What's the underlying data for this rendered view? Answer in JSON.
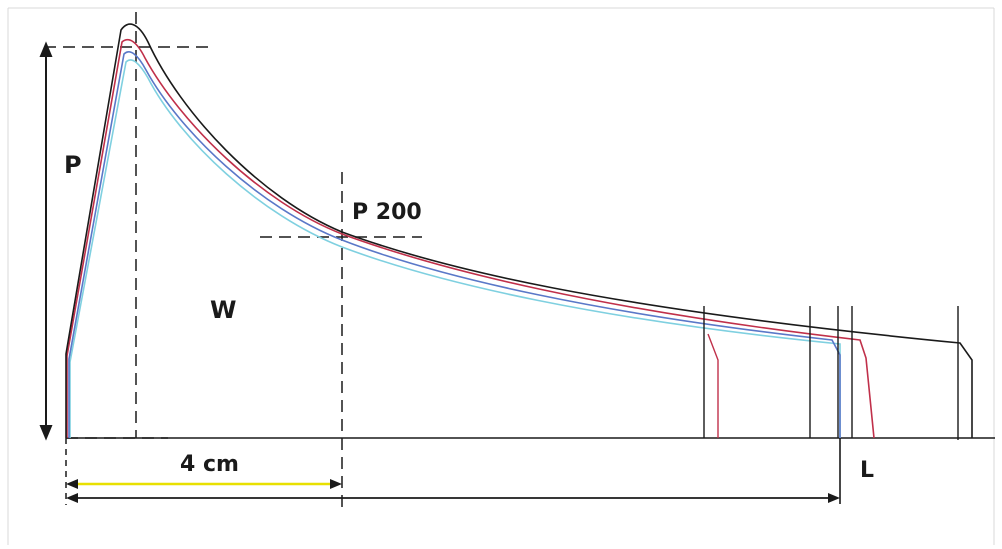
{
  "labels": {
    "peak": "P",
    "p200": "P 200",
    "work": "W",
    "distance": "4 cm",
    "length": "L"
  },
  "colors": {
    "black": "#1a1a1a",
    "red": "#c0304a",
    "blue": "#5a78c8",
    "cyan": "#7fd0e0",
    "yellow": "#e8e000"
  }
}
